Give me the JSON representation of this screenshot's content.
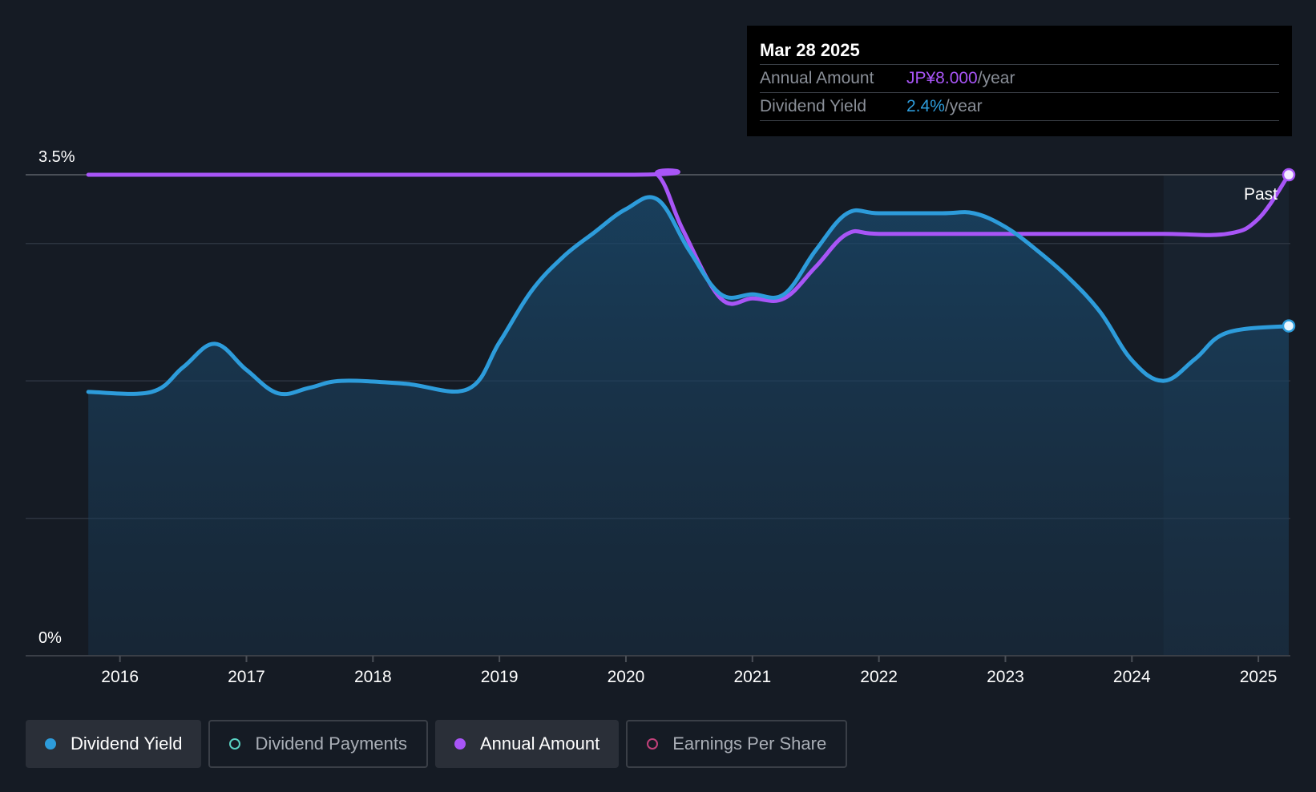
{
  "tooltip": {
    "date": "Mar 28 2025",
    "rows": [
      {
        "label": "Annual Amount",
        "value": "JP¥8.000",
        "suffix": "/year",
        "color": "#a855f7"
      },
      {
        "label": "Dividend Yield",
        "value": "2.4%",
        "suffix": "/year",
        "color": "#2d9cdb"
      }
    ]
  },
  "past_label": "Past",
  "legend": [
    {
      "label": "Dividend Yield",
      "color": "#2d9cdb",
      "active": true,
      "filled": true
    },
    {
      "label": "Dividend Payments",
      "color": "#5ad1c2",
      "active": false,
      "filled": false
    },
    {
      "label": "Annual Amount",
      "color": "#a855f7",
      "active": true,
      "filled": true
    },
    {
      "label": "Earnings Per Share",
      "color": "#c2417a",
      "active": false,
      "filled": false
    }
  ],
  "chart_data": {
    "type": "line",
    "y_axis_labels": [
      "3.5%",
      "0%"
    ],
    "ylim": [
      0,
      3.5
    ],
    "xlim": [
      2015.66,
      2025.24
    ],
    "x_ticks": [
      2016,
      2017,
      2018,
      2019,
      2020,
      2021,
      2022,
      2023,
      2024,
      2025
    ],
    "x_tick_labels": [
      "2016",
      "2017",
      "2018",
      "2019",
      "2020",
      "2021",
      "2022",
      "2023",
      "2024",
      "2025"
    ],
    "gridlines": [
      0,
      1,
      2,
      3,
      3.5
    ],
    "past_region_start": 2024.25,
    "series": [
      {
        "name": "Dividend Yield",
        "color": "#2d9cdb",
        "area": true,
        "points": [
          [
            2015.75,
            1.92
          ],
          [
            2016.25,
            1.92
          ],
          [
            2016.5,
            2.1
          ],
          [
            2016.75,
            2.27
          ],
          [
            2017.0,
            2.08
          ],
          [
            2017.25,
            1.91
          ],
          [
            2017.5,
            1.95
          ],
          [
            2017.75,
            2.0
          ],
          [
            2018.25,
            1.98
          ],
          [
            2018.75,
            1.94
          ],
          [
            2019.0,
            2.28
          ],
          [
            2019.25,
            2.65
          ],
          [
            2019.5,
            2.9
          ],
          [
            2019.75,
            3.08
          ],
          [
            2020.0,
            3.25
          ],
          [
            2020.25,
            3.32
          ],
          [
            2020.5,
            2.95
          ],
          [
            2020.75,
            2.63
          ],
          [
            2021.0,
            2.63
          ],
          [
            2021.25,
            2.63
          ],
          [
            2021.5,
            2.95
          ],
          [
            2021.75,
            3.22
          ],
          [
            2022.0,
            3.22
          ],
          [
            2022.5,
            3.22
          ],
          [
            2022.75,
            3.22
          ],
          [
            2023.0,
            3.12
          ],
          [
            2023.25,
            2.95
          ],
          [
            2023.5,
            2.75
          ],
          [
            2023.75,
            2.5
          ],
          [
            2024.0,
            2.15
          ],
          [
            2024.25,
            2.0
          ],
          [
            2024.5,
            2.16
          ],
          [
            2024.75,
            2.35
          ],
          [
            2025.24,
            2.4
          ]
        ]
      },
      {
        "name": "Annual Amount",
        "color": "#a855f7",
        "area": false,
        "points": [
          [
            2015.75,
            3.5
          ],
          [
            2020.0,
            3.5
          ],
          [
            2020.25,
            3.5
          ],
          [
            2020.45,
            3.1
          ],
          [
            2020.75,
            2.6
          ],
          [
            2021.0,
            2.6
          ],
          [
            2021.25,
            2.6
          ],
          [
            2021.5,
            2.83
          ],
          [
            2021.75,
            3.07
          ],
          [
            2022.0,
            3.07
          ],
          [
            2022.75,
            3.07
          ],
          [
            2023.5,
            3.07
          ],
          [
            2024.25,
            3.07
          ],
          [
            2024.75,
            3.07
          ],
          [
            2025.0,
            3.18
          ],
          [
            2025.24,
            3.5
          ]
        ]
      }
    ]
  }
}
